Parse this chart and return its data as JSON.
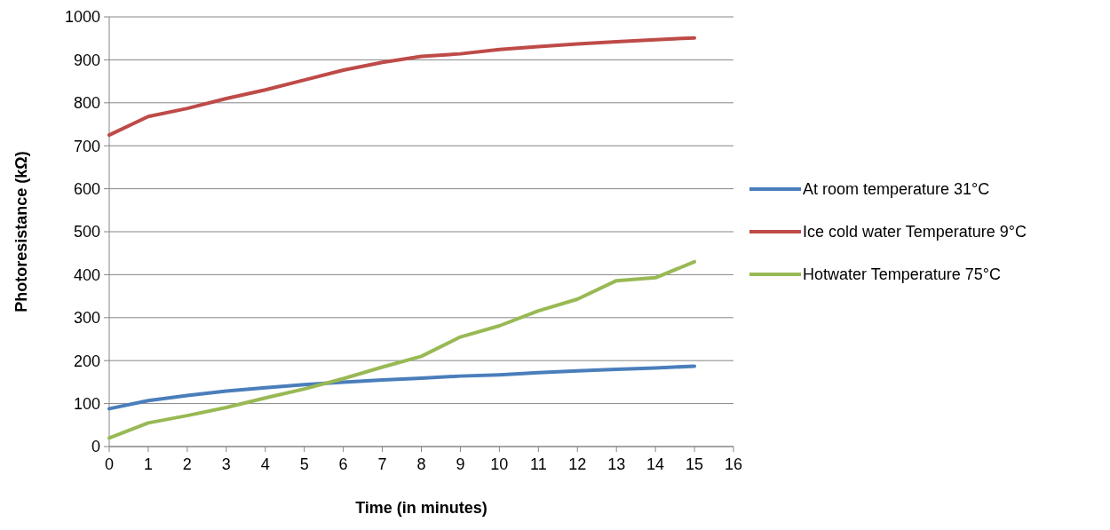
{
  "chart_data": {
    "type": "line",
    "xlabel": "Time (in minutes)",
    "ylabel": "Photoresistance (kΩ)",
    "x": [
      0,
      1,
      2,
      3,
      4,
      5,
      6,
      7,
      8,
      9,
      10,
      11,
      12,
      13,
      14,
      15
    ],
    "xlim": [
      0,
      16
    ],
    "xticks": [
      0,
      1,
      2,
      3,
      4,
      5,
      6,
      7,
      8,
      9,
      10,
      11,
      12,
      13,
      14,
      15,
      16
    ],
    "ylim": [
      0,
      1000
    ],
    "yticks": [
      0,
      100,
      200,
      300,
      400,
      500,
      600,
      700,
      800,
      900,
      1000
    ],
    "grid": "y",
    "legend": "right",
    "marker": "none",
    "line_style": "solid",
    "series": [
      {
        "name": "At room temperature 31°C",
        "color": "#4a7ebb",
        "values": [
          88,
          107,
          119,
          129,
          137,
          144,
          150,
          155,
          159,
          164,
          167,
          172,
          176,
          180,
          183,
          187
        ]
      },
      {
        "name": "Ice cold water Temperature 9°C",
        "color": "#be4b48",
        "values": [
          725,
          768,
          787,
          810,
          830,
          853,
          876,
          894,
          908,
          914,
          924,
          931,
          937,
          942,
          947,
          951
        ]
      },
      {
        "name": "Hotwater Temperature 75°C",
        "color": "#98b954",
        "values": [
          20,
          55,
          72,
          91,
          113,
          134,
          158,
          185,
          210,
          255,
          281,
          316,
          343,
          386,
          393,
          430
        ]
      }
    ]
  }
}
